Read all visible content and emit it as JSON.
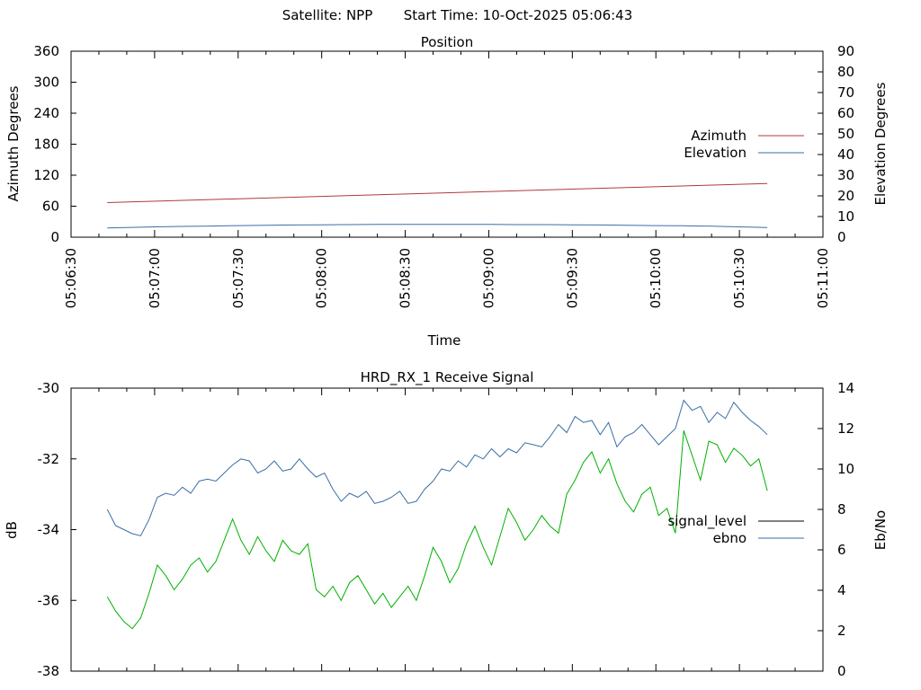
{
  "header": {
    "satellite": "Satellite: NPP",
    "start_time": "Start Time: 10-Oct-2025 05:06:43"
  },
  "colors": {
    "azimuth": "#b03a3a",
    "elevation": "#3a6ea5",
    "signal_level": "#000000",
    "ebno": "#3a6ea5",
    "green_trace": "#00b000"
  },
  "chart_data": [
    {
      "type": "line",
      "title": "Position",
      "xlabel": "Time",
      "ylabel": "Azimuth Degrees",
      "y2label": "Elevation Degrees",
      "x_ticks": [
        "05:06:30",
        "05:07:00",
        "05:07:30",
        "05:08:00",
        "05:08:30",
        "05:09:00",
        "05:09:30",
        "05:10:00",
        "05:10:30",
        "05:11:00"
      ],
      "y_ticks": [
        "0",
        "60",
        "120",
        "180",
        "240",
        "300",
        "360"
      ],
      "y2_ticks": [
        "0",
        "10",
        "20",
        "30",
        "40",
        "50",
        "60",
        "70",
        "80",
        "90"
      ],
      "ylim": [
        0,
        360
      ],
      "y2lim": [
        0,
        90
      ],
      "xlim_seconds": [
        0,
        270
      ],
      "legend_position": "right",
      "series": [
        {
          "name": "Azimuth",
          "axis": "y",
          "x_seconds": [
            13,
            250
          ],
          "values": [
            67,
            104
          ]
        },
        {
          "name": "Elevation",
          "axis": "y2",
          "x_seconds": [
            13,
            20,
            30,
            40,
            50,
            60,
            70,
            80,
            90,
            100,
            110,
            120,
            130,
            140,
            150,
            160,
            170,
            180,
            190,
            200,
            210,
            220,
            230,
            240,
            250
          ],
          "values": [
            4.5,
            4.7,
            5.0,
            5.2,
            5.4,
            5.6,
            5.8,
            5.9,
            6.0,
            6.1,
            6.2,
            6.2,
            6.2,
            6.2,
            6.2,
            6.1,
            6.1,
            6.0,
            5.9,
            5.8,
            5.6,
            5.5,
            5.3,
            5.0,
            4.7
          ]
        }
      ]
    },
    {
      "type": "line",
      "title": "HRD_RX_1 Receive Signal",
      "ylabel": "dB",
      "y2label": "Eb/No",
      "y_ticks": [
        "-38",
        "-36",
        "-34",
        "-32",
        "-30"
      ],
      "y2_ticks": [
        "0",
        "2",
        "4",
        "6",
        "8",
        "10",
        "12",
        "14"
      ],
      "ylim": [
        -38,
        -30
      ],
      "y2lim": [
        0,
        14
      ],
      "xlim_seconds": [
        0,
        270
      ],
      "legend_position": "right",
      "legend": [
        "signal_level",
        "ebno"
      ],
      "series": [
        {
          "name": "ebno",
          "axis": "y2",
          "x_seconds": [
            13,
            16,
            19,
            22,
            25,
            28,
            31,
            34,
            37,
            40,
            43,
            46,
            49,
            52,
            55,
            58,
            61,
            64,
            67,
            70,
            73,
            76,
            79,
            82,
            85,
            88,
            91,
            94,
            97,
            100,
            103,
            106,
            109,
            112,
            115,
            118,
            121,
            124,
            127,
            130,
            133,
            136,
            139,
            142,
            145,
            148,
            151,
            154,
            157,
            160,
            163,
            166,
            169,
            172,
            175,
            178,
            181,
            184,
            187,
            190,
            193,
            196,
            199,
            202,
            205,
            208,
            211,
            214,
            217,
            220,
            223,
            226,
            229,
            232,
            235,
            238,
            241,
            244,
            247,
            250
          ],
          "values": [
            8.0,
            7.2,
            7.0,
            6.8,
            6.7,
            7.5,
            8.6,
            8.8,
            8.7,
            9.1,
            8.8,
            9.4,
            9.5,
            9.4,
            9.8,
            10.2,
            10.5,
            10.4,
            9.8,
            10.0,
            10.4,
            9.9,
            10.0,
            10.5,
            10.0,
            9.6,
            9.8,
            9.0,
            8.4,
            8.8,
            8.6,
            8.9,
            8.3,
            8.4,
            8.6,
            8.9,
            8.3,
            8.4,
            9.0,
            9.4,
            10.0,
            9.9,
            10.4,
            10.1,
            10.7,
            10.5,
            11.0,
            10.6,
            11.0,
            10.8,
            11.3,
            11.2,
            11.1,
            11.6,
            12.2,
            11.8,
            12.6,
            12.3,
            12.4,
            11.7,
            12.3,
            11.1,
            11.6,
            11.8,
            12.2,
            11.7,
            11.2,
            11.6,
            12.0,
            13.4,
            12.9,
            13.1,
            12.3,
            12.8,
            12.5,
            13.3,
            12.8,
            12.4,
            12.1,
            11.7
          ]
        },
        {
          "name": "",
          "axis": "y",
          "x_seconds": [
            13,
            16,
            19,
            22,
            25,
            28,
            31,
            34,
            37,
            40,
            43,
            46,
            49,
            52,
            55,
            58,
            61,
            64,
            67,
            70,
            73,
            76,
            79,
            82,
            85,
            88,
            91,
            94,
            97,
            100,
            103,
            106,
            109,
            112,
            115,
            118,
            121,
            124,
            127,
            130,
            133,
            136,
            139,
            142,
            145,
            148,
            151,
            154,
            157,
            160,
            163,
            166,
            169,
            172,
            175,
            178,
            181,
            184,
            187,
            190,
            193,
            196,
            199,
            202,
            205,
            208,
            211,
            214,
            217,
            220,
            223,
            226,
            229,
            232,
            235,
            238,
            241,
            244,
            247,
            250
          ],
          "values": [
            -35.9,
            -36.3,
            -36.6,
            -36.8,
            -36.5,
            -35.8,
            -35.0,
            -35.3,
            -35.7,
            -35.4,
            -35.0,
            -34.8,
            -35.2,
            -34.9,
            -34.3,
            -33.7,
            -34.3,
            -34.7,
            -34.2,
            -34.6,
            -34.9,
            -34.3,
            -34.6,
            -34.7,
            -34.4,
            -35.7,
            -35.9,
            -35.6,
            -36.0,
            -35.5,
            -35.3,
            -35.7,
            -36.1,
            -35.8,
            -36.2,
            -35.9,
            -35.6,
            -36.0,
            -35.3,
            -34.5,
            -34.9,
            -35.5,
            -35.1,
            -34.4,
            -33.9,
            -34.5,
            -35.0,
            -34.2,
            -33.4,
            -33.8,
            -34.3,
            -34.0,
            -33.6,
            -33.9,
            -34.1,
            -33.0,
            -32.6,
            -32.1,
            -31.8,
            -32.4,
            -32.0,
            -32.7,
            -33.2,
            -33.5,
            -33.0,
            -32.8,
            -33.6,
            -33.4,
            -34.1,
            -31.2,
            -31.9,
            -32.6,
            -31.5,
            -31.6,
            -32.1,
            -31.7,
            -31.9,
            -32.2,
            -32.0,
            -32.9
          ]
        }
      ]
    }
  ]
}
